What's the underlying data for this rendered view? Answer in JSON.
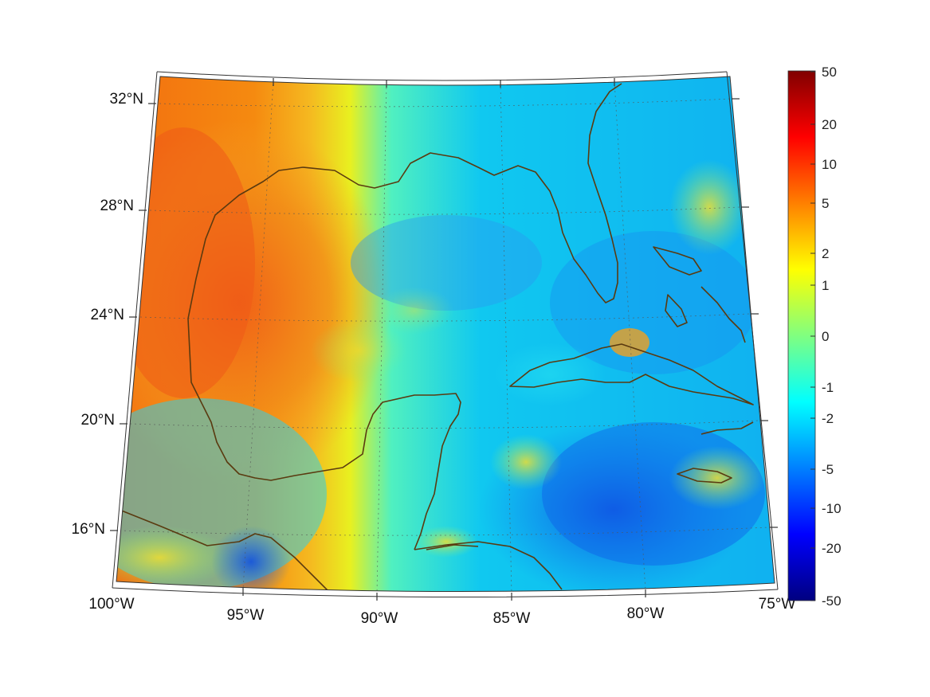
{
  "map": {
    "projection": "conic",
    "lon_range": [
      -100,
      -75
    ],
    "lat_range": [
      14,
      33
    ],
    "graticule": "dotted",
    "coastline_color": "#5a3a10",
    "lon_labels": [
      "100°W",
      "95°W",
      "90°W",
      "85°W",
      "80°W",
      "75°W"
    ],
    "lat_labels": [
      "32°N",
      "28°N",
      "24°N",
      "20°N",
      "16°N"
    ]
  },
  "colorbar": {
    "colormap": "jet",
    "labels": [
      "50",
      "20",
      "10",
      "5",
      "2",
      "1",
      "0",
      "-1",
      "-2",
      "-5",
      "-10",
      "-20",
      "-50"
    ],
    "colors": [
      "#800000",
      "#ff0000",
      "#ff8000",
      "#ffff00",
      "#80ff80",
      "#00ffff",
      "#0080ff",
      "#0000ff",
      "#000080"
    ]
  }
}
